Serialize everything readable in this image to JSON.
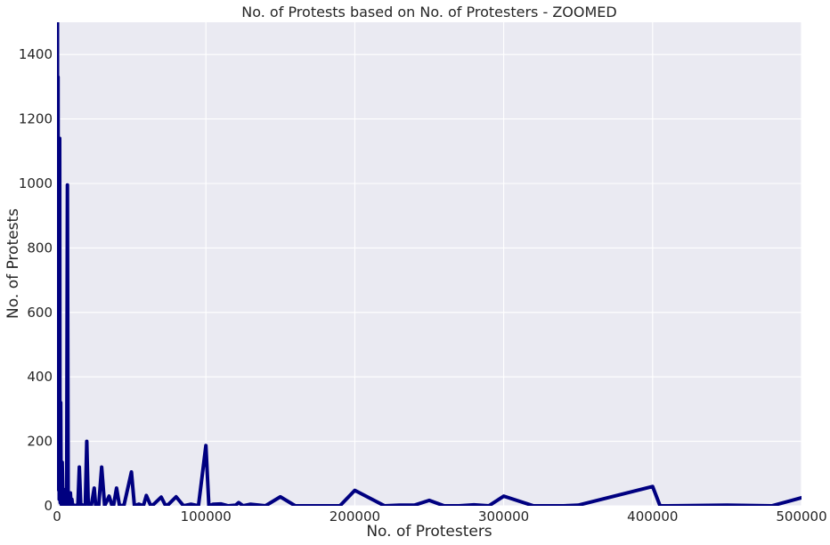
{
  "chart_data": {
    "type": "line",
    "title": "No. of Protests based on No. of Protesters - ZOOMED",
    "xlabel": "No. of Protesters",
    "ylabel": "No. of Protests",
    "xlim": [
      0,
      500000
    ],
    "ylim": [
      0,
      1500
    ],
    "xticks": [
      0,
      100000,
      200000,
      300000,
      400000,
      500000
    ],
    "yticks": [
      0,
      200,
      400,
      600,
      800,
      1000,
      1200,
      1400
    ],
    "grid": true,
    "background": "#EAEAF2",
    "line_color": "#000080",
    "series": [
      {
        "x": [
          0,
          200,
          300,
          500,
          700,
          1000,
          1200,
          1500,
          1800,
          2000,
          2200,
          2500,
          2800,
          3000,
          3300,
          3500,
          4000,
          4300,
          4500,
          5000,
          5500,
          6000,
          6500,
          7000,
          7500,
          8000,
          9000,
          9500,
          10000,
          10500,
          11000,
          12000,
          13000,
          14000,
          15000,
          16000,
          17000,
          18000,
          19000,
          20000,
          21000,
          22000,
          23000,
          25000,
          26000,
          27000,
          28000,
          30000,
          32000,
          35000,
          37000,
          38000,
          40000,
          42000,
          45000,
          50000,
          52000,
          55000,
          58000,
          60000,
          63000,
          65000,
          70000,
          73000,
          75000,
          80000,
          85000,
          90000,
          95000,
          100000,
          102000,
          105000,
          110000,
          115000,
          120000,
          122000,
          125000,
          130000,
          140000,
          150000,
          160000,
          170000,
          180000,
          190000,
          200000,
          220000,
          230000,
          240000,
          250000,
          260000,
          270000,
          280000,
          290000,
          300000,
          320000,
          340000,
          350000,
          400000,
          405000,
          410000,
          450000,
          480000,
          500000
        ],
        "y": [
          1600,
          300,
          1500,
          200,
          1330,
          50,
          400,
          20,
          1140,
          100,
          10,
          320,
          5,
          30,
          2,
          135,
          20,
          8,
          3,
          50,
          2,
          15,
          3,
          995,
          10,
          3,
          40,
          2,
          20,
          1,
          3,
          0,
          2,
          0,
          120,
          0,
          3,
          0,
          1,
          200,
          5,
          2,
          0,
          55,
          0,
          2,
          0,
          120,
          0,
          30,
          0,
          2,
          55,
          0,
          2,
          105,
          0,
          5,
          0,
          32,
          0,
          5,
          27,
          0,
          5,
          28,
          0,
          5,
          0,
          187,
          0,
          5,
          6,
          0,
          2,
          10,
          0,
          5,
          0,
          28,
          0,
          0,
          0,
          0,
          48,
          0,
          2,
          2,
          17,
          0,
          0,
          3,
          0,
          30,
          0,
          0,
          2,
          60,
          0,
          0,
          2,
          0,
          25
        ]
      }
    ]
  }
}
